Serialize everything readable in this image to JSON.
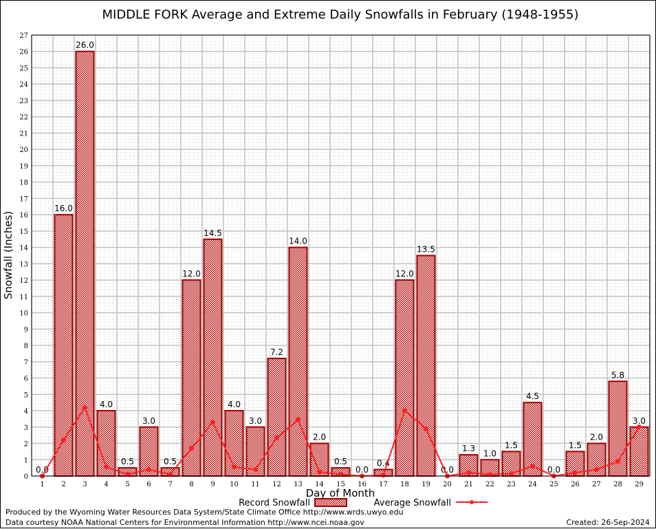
{
  "chart_data": {
    "type": "bar",
    "title": "MIDDLE FORK Average and Extreme Daily Snowfalls in February (1948-1955)",
    "xlabel": "Day of Month",
    "ylabel": "Snowfall (Inches)",
    "ylim": [
      0,
      27
    ],
    "grid": true,
    "categories": [
      "1",
      "2",
      "3",
      "4",
      "5",
      "6",
      "7",
      "8",
      "9",
      "10",
      "11",
      "12",
      "13",
      "14",
      "15",
      "16",
      "17",
      "18",
      "19",
      "20",
      "21",
      "22",
      "23",
      "24",
      "25",
      "26",
      "27",
      "28",
      "29"
    ],
    "series": [
      {
        "name": "Record Snowfall",
        "type": "bar",
        "color": "#a00000",
        "values": [
          0.0,
          16.0,
          26.0,
          4.0,
          0.5,
          3.0,
          0.5,
          12.0,
          14.5,
          4.0,
          3.0,
          7.2,
          14.0,
          2.0,
          0.5,
          0.0,
          0.4,
          12.0,
          13.5,
          0.0,
          1.3,
          1.0,
          1.5,
          4.5,
          0.0,
          1.5,
          2.0,
          5.8,
          3.0
        ],
        "labels": [
          "0.0",
          "16.0",
          "26.0",
          "4.0",
          "0.5",
          "3.0",
          "0.5",
          "12.0",
          "14.5",
          "4.0",
          "3.0",
          "7.2",
          "14.0",
          "2.0",
          "0.5",
          "0.0",
          "0.4",
          "12.0",
          "13.5",
          "0.0",
          "1.3",
          "1.0",
          "1.5",
          "4.5",
          "0.0",
          "1.5",
          "2.0",
          "5.8",
          "3.0"
        ]
      },
      {
        "name": "Average Snowfall",
        "type": "line",
        "color": "#ff2020",
        "values": [
          0.0,
          2.2,
          4.2,
          0.55,
          0.1,
          0.4,
          0.1,
          1.7,
          3.3,
          0.55,
          0.4,
          2.35,
          3.45,
          0.25,
          0.1,
          0.0,
          0.05,
          4.0,
          2.9,
          0.0,
          0.2,
          0.1,
          0.15,
          0.6,
          0.0,
          0.2,
          0.4,
          0.9,
          3.0
        ]
      }
    ],
    "legend": "bottom-center"
  },
  "footer": {
    "produced_by": "Produced by the Wyoming Water Resources Data System/State Climate Office http://www.wrds.uwyo.edu",
    "courtesy": "Data courtesy NOAA National Centers for Environmental Information http://www.ncei.noaa.gov",
    "created": "Created: 26-Sep-2024"
  }
}
